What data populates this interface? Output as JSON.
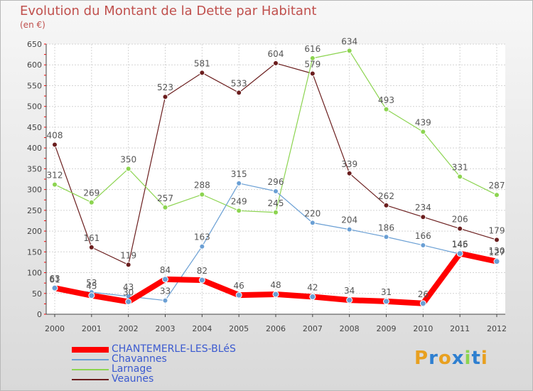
{
  "header": {
    "title": "Evolution du Montant de la Dette par Habitant",
    "subtitle": "(en €)"
  },
  "logo": {
    "text": "Proxiti"
  },
  "chart_data": {
    "type": "line",
    "title": "Evolution du Montant de la Dette par Habitant",
    "subtitle": "(en €)",
    "xlabel": "",
    "ylabel": "",
    "x": [
      "2000",
      "2001",
      "2002",
      "2003",
      "2004",
      "2005",
      "2006",
      "2007",
      "2008",
      "2009",
      "2010",
      "2011",
      "2012"
    ],
    "ylim": [
      0,
      650
    ],
    "yticks": [
      0,
      50,
      100,
      150,
      200,
      250,
      300,
      350,
      400,
      450,
      500,
      550,
      600,
      650
    ],
    "grid": true,
    "legend_position": "bottom-left",
    "series": [
      {
        "name": "Veaunes",
        "color": "#6b1e1e",
        "values": [
          408,
          161,
          119,
          523,
          581,
          533,
          604,
          579,
          339,
          262,
          234,
          206,
          179
        ]
      },
      {
        "name": "Larnage",
        "color": "#8cd450",
        "values": [
          312,
          269,
          350,
          257,
          288,
          249,
          245,
          616,
          634,
          493,
          439,
          331,
          287
        ]
      },
      {
        "name": "Chavannes",
        "color": "#6a9fd4",
        "values": [
          61,
          53,
          43,
          33,
          163,
          315,
          296,
          220,
          204,
          186,
          166,
          145,
          130
        ]
      },
      {
        "name": "CHANTEMERLE-LES-BLéS",
        "color": "#ff0000",
        "values": [
          63,
          45,
          30,
          84,
          82,
          46,
          48,
          42,
          34,
          31,
          26,
          146,
          127
        ]
      }
    ]
  }
}
